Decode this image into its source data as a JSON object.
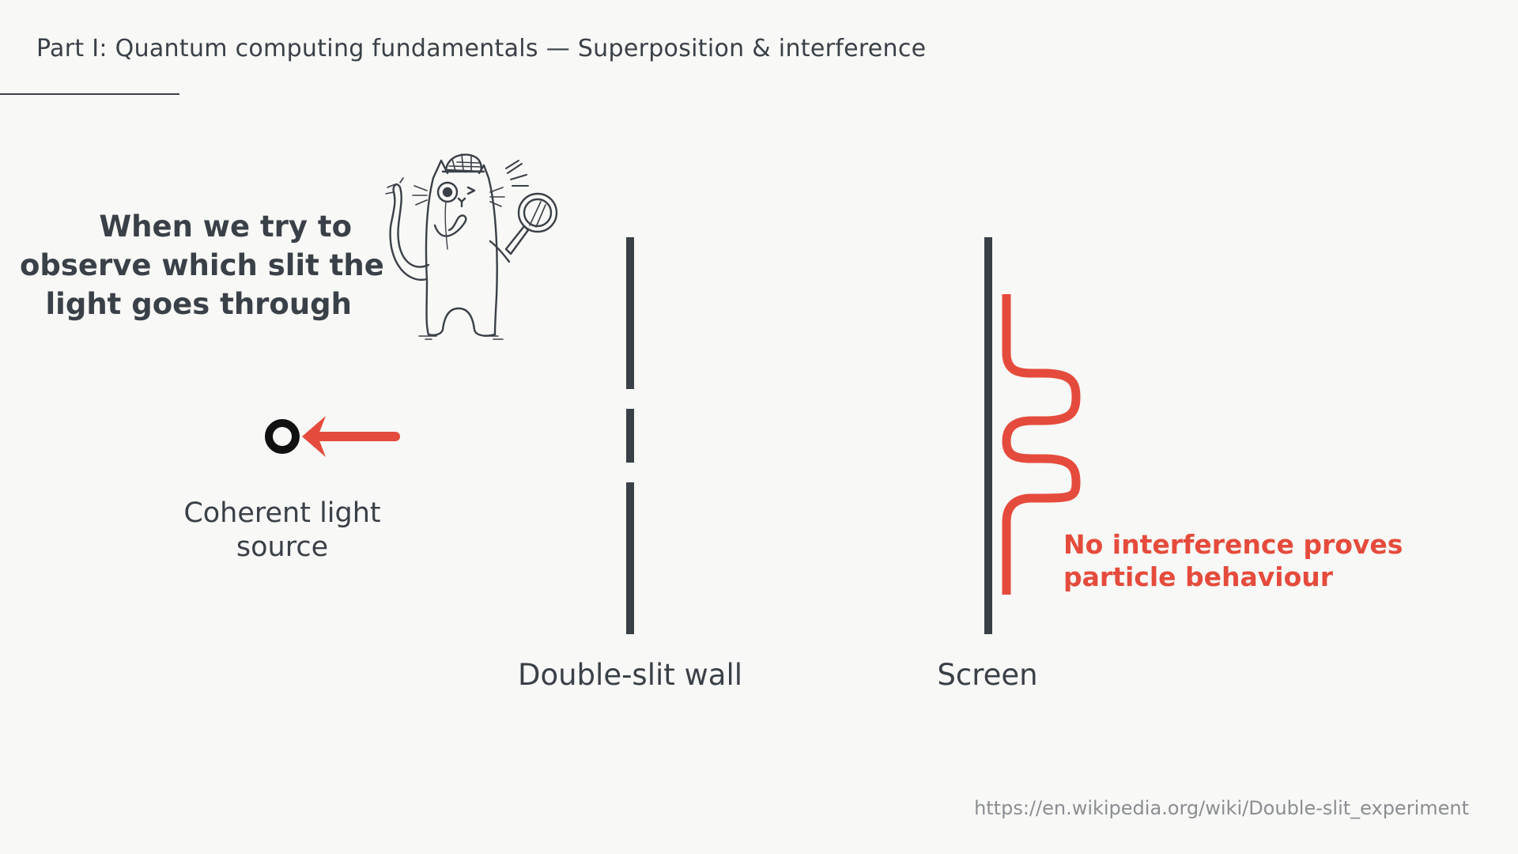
{
  "header": {
    "title": "Part I: Quantum computing fundamentals — Superposition & interference"
  },
  "observe_note": {
    "lines": [
      "When we try to",
      "observe which slit the",
      "light goes through"
    ]
  },
  "labels": {
    "source_line1": "Coherent light",
    "source_line2": "source",
    "wall": "Double-slit wall",
    "screen": "Screen"
  },
  "result_note": {
    "lines": [
      "No interference proves",
      "particle behaviour"
    ]
  },
  "source_link": "https://en.wikipedia.org/wiki/Double-slit_experiment",
  "illustration": {
    "name": "detective-cat-with-magnifying-glass"
  },
  "colors": {
    "text_dark": "#3a4047",
    "accent_red": "#e54b3c",
    "background": "#f8f8f6",
    "link_gray": "#8a8e92"
  }
}
